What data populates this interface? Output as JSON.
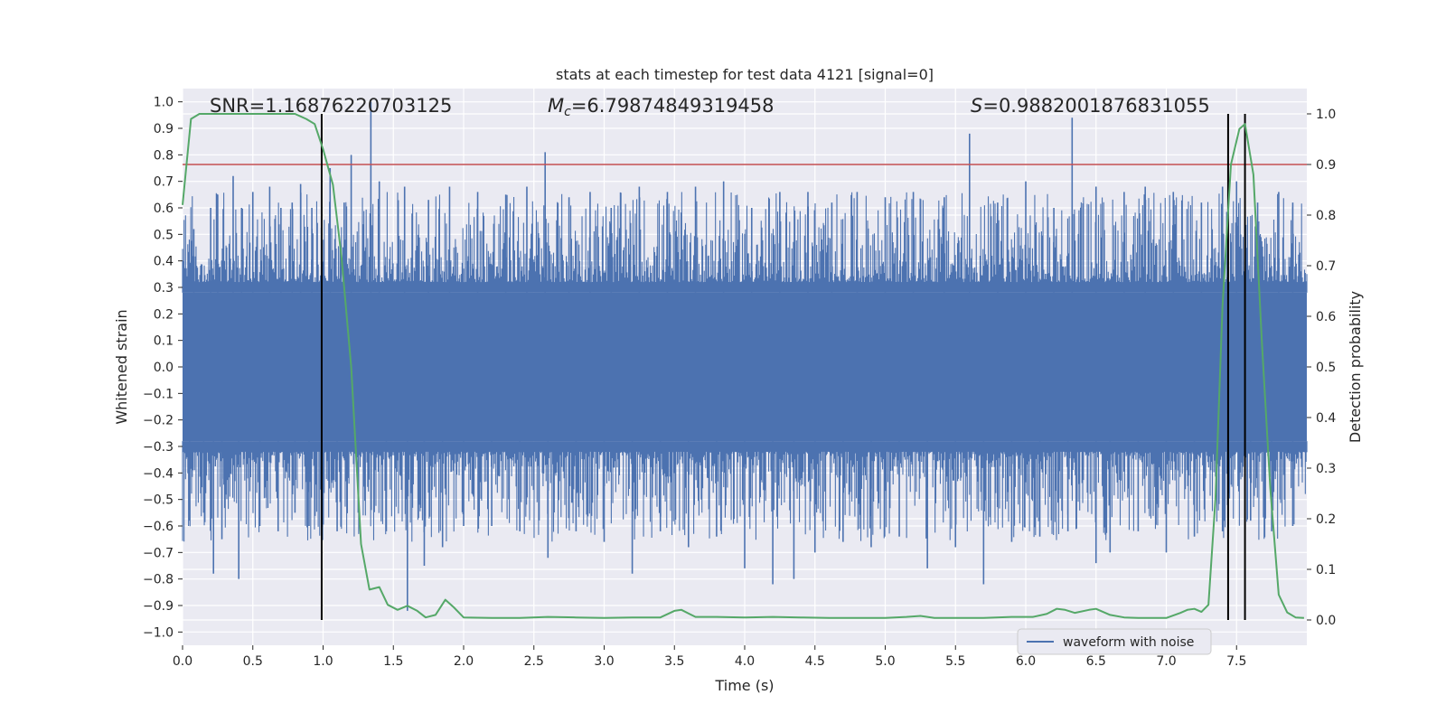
{
  "chart_data": {
    "type": "line",
    "title": "stats at each timestep for test data 4121 [signal=0]",
    "xlabel": "Time (s)",
    "ylabel_left": "Whitened strain",
    "ylabel_right": "Detection probability",
    "xlim": [
      0.0,
      8.0
    ],
    "ylim_left": [
      -1.05,
      1.05
    ],
    "ylim_right": [
      -0.05,
      1.05
    ],
    "xticks": [
      "0.0",
      "0.5",
      "1.0",
      "1.5",
      "2.0",
      "2.5",
      "3.0",
      "3.5",
      "4.0",
      "4.5",
      "5.0",
      "5.5",
      "6.0",
      "6.5",
      "7.0",
      "7.5"
    ],
    "yticks_left": [
      "1.0",
      "0.9",
      "0.8",
      "0.7",
      "0.6",
      "0.5",
      "0.4",
      "0.3",
      "0.2",
      "0.1",
      "0.0",
      "−0.1",
      "−0.2",
      "−0.3",
      "−0.4",
      "−0.5",
      "−0.6",
      "−0.7",
      "−0.8",
      "−0.9",
      "−1.0"
    ],
    "yticks_right": [
      "1.0",
      "0.9",
      "0.8",
      "0.7",
      "0.6",
      "0.5",
      "0.4",
      "0.3",
      "0.2",
      "0.1",
      "0.0"
    ],
    "grid": true,
    "legend_position": "lower-right",
    "annotations": {
      "snr": "SNR=1.16876220703125",
      "mc_symbol": "M",
      "mc_sub": "c",
      "mc_value": "=6.79874849319458",
      "s_symbol": "S",
      "s_value": "=0.9882001876831055"
    },
    "threshold_line": {
      "axis": "right",
      "value": 0.9,
      "color": "#c44e52"
    },
    "vertical_lines": [
      0.99,
      7.44,
      7.56
    ],
    "waveform": {
      "name": "waveform with noise",
      "color": "#4c72b0",
      "band": 0.28,
      "spikes": [
        [
          0.08,
          0.52
        ],
        [
          0.2,
          0.6
        ],
        [
          0.25,
          0.65
        ],
        [
          0.36,
          0.72
        ],
        [
          0.42,
          0.6
        ],
        [
          0.5,
          0.66
        ],
        [
          0.62,
          0.68
        ],
        [
          0.7,
          0.6
        ],
        [
          0.78,
          0.62
        ],
        [
          0.84,
          0.69
        ],
        [
          0.92,
          0.6
        ],
        [
          1.05,
          0.75
        ],
        [
          1.15,
          0.62
        ],
        [
          1.2,
          0.8
        ],
        [
          1.34,
          1.0
        ],
        [
          1.4,
          0.7
        ],
        [
          1.58,
          0.68
        ],
        [
          1.75,
          0.63
        ],
        [
          1.9,
          0.68
        ],
        [
          2.1,
          0.66
        ],
        [
          2.3,
          0.65
        ],
        [
          2.45,
          0.68
        ],
        [
          2.58,
          0.81
        ],
        [
          2.75,
          0.64
        ],
        [
          2.9,
          0.66
        ],
        [
          3.05,
          0.6
        ],
        [
          3.25,
          0.68
        ],
        [
          3.45,
          0.66
        ],
        [
          3.65,
          0.68
        ],
        [
          3.85,
          0.7
        ],
        [
          4.05,
          0.6
        ],
        [
          4.25,
          0.66
        ],
        [
          4.45,
          0.66
        ],
        [
          4.62,
          0.62
        ],
        [
          4.8,
          0.66
        ],
        [
          5.0,
          0.64
        ],
        [
          5.2,
          0.66
        ],
        [
          5.42,
          0.64
        ],
        [
          5.6,
          0.88
        ],
        [
          5.8,
          0.62
        ],
        [
          6.0,
          0.7
        ],
        [
          6.2,
          0.6
        ],
        [
          6.33,
          0.94
        ],
        [
          6.5,
          0.68
        ],
        [
          6.7,
          0.66
        ],
        [
          6.85,
          0.68
        ],
        [
          7.05,
          0.66
        ],
        [
          7.25,
          0.62
        ],
        [
          7.4,
          0.68
        ],
        [
          7.5,
          0.7
        ],
        [
          7.65,
          0.62
        ],
        [
          7.8,
          0.66
        ],
        [
          7.9,
          0.62
        ],
        [
          0.05,
          -0.58
        ],
        [
          0.15,
          -0.55
        ],
        [
          0.22,
          -0.78
        ],
        [
          0.28,
          -0.65
        ],
        [
          0.4,
          -0.8
        ],
        [
          0.55,
          -0.6
        ],
        [
          0.68,
          -0.62
        ],
        [
          0.8,
          -0.55
        ],
        [
          0.9,
          -0.6
        ],
        [
          1.1,
          -0.62
        ],
        [
          1.25,
          -0.55
        ],
        [
          1.45,
          -0.62
        ],
        [
          1.6,
          -0.92
        ],
        [
          1.72,
          -0.75
        ],
        [
          1.85,
          -0.68
        ],
        [
          2.0,
          -0.6
        ],
        [
          2.2,
          -0.6
        ],
        [
          2.4,
          -0.62
        ],
        [
          2.6,
          -0.72
        ],
        [
          2.8,
          -0.62
        ],
        [
          3.0,
          -0.66
        ],
        [
          3.2,
          -0.78
        ],
        [
          3.4,
          -0.62
        ],
        [
          3.6,
          -0.68
        ],
        [
          3.8,
          -0.64
        ],
        [
          4.0,
          -0.76
        ],
        [
          4.2,
          -0.82
        ],
        [
          4.35,
          -0.8
        ],
        [
          4.5,
          -0.7
        ],
        [
          4.7,
          -0.66
        ],
        [
          4.9,
          -0.68
        ],
        [
          5.1,
          -0.64
        ],
        [
          5.3,
          -0.76
        ],
        [
          5.5,
          -0.68
        ],
        [
          5.7,
          -0.82
        ],
        [
          5.9,
          -0.66
        ],
        [
          6.1,
          -0.64
        ],
        [
          6.3,
          -0.62
        ],
        [
          6.5,
          -0.74
        ],
        [
          6.6,
          -0.7
        ],
        [
          6.8,
          -0.62
        ],
        [
          7.0,
          -0.7
        ],
        [
          7.2,
          -0.64
        ],
        [
          7.4,
          -0.62
        ],
        [
          7.6,
          -0.58
        ],
        [
          7.75,
          -0.62
        ],
        [
          7.9,
          -0.6
        ]
      ]
    },
    "detection_probability": {
      "color": "#55a868",
      "x": [
        0.0,
        0.06,
        0.12,
        0.2,
        0.3,
        0.4,
        0.5,
        0.6,
        0.7,
        0.8,
        0.88,
        0.94,
        1.0,
        1.07,
        1.13,
        1.2,
        1.27,
        1.33,
        1.4,
        1.46,
        1.53,
        1.6,
        1.67,
        1.73,
        1.8,
        1.87,
        1.93,
        2.0,
        2.2,
        2.4,
        2.6,
        2.8,
        3.0,
        3.2,
        3.4,
        3.5,
        3.55,
        3.65,
        3.8,
        4.0,
        4.2,
        4.4,
        4.6,
        4.8,
        5.0,
        5.15,
        5.25,
        5.35,
        5.5,
        5.7,
        5.9,
        6.05,
        6.15,
        6.22,
        6.28,
        6.35,
        6.45,
        6.5,
        6.6,
        6.7,
        6.8,
        7.0,
        7.1,
        7.15,
        7.2,
        7.25,
        7.3,
        7.35,
        7.4,
        7.46,
        7.52,
        7.56,
        7.62,
        7.68,
        7.74,
        7.8,
        7.86,
        7.92,
        7.98
      ],
      "values": [
        0.82,
        0.99,
        1.0,
        1.0,
        1.0,
        1.0,
        1.0,
        1.0,
        1.0,
        1.0,
        0.99,
        0.98,
        0.93,
        0.86,
        0.72,
        0.5,
        0.15,
        0.06,
        0.065,
        0.03,
        0.02,
        0.028,
        0.018,
        0.005,
        0.01,
        0.04,
        0.025,
        0.005,
        0.004,
        0.004,
        0.006,
        0.005,
        0.004,
        0.005,
        0.005,
        0.018,
        0.02,
        0.006,
        0.006,
        0.005,
        0.006,
        0.005,
        0.004,
        0.004,
        0.004,
        0.006,
        0.008,
        0.004,
        0.004,
        0.004,
        0.006,
        0.006,
        0.012,
        0.022,
        0.02,
        0.014,
        0.02,
        0.022,
        0.01,
        0.005,
        0.004,
        0.004,
        0.014,
        0.02,
        0.022,
        0.016,
        0.03,
        0.24,
        0.62,
        0.9,
        0.97,
        0.98,
        0.88,
        0.55,
        0.26,
        0.05,
        0.015,
        0.005,
        0.004
      ]
    }
  }
}
